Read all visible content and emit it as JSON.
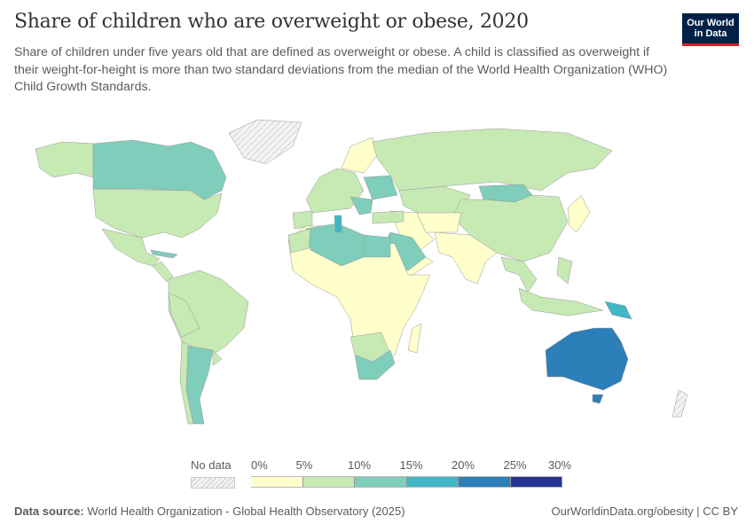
{
  "header": {
    "title": "Share of children who are overweight or obese, 2020",
    "subtitle": "Share of children under five years old that are defined as overweight or obese. A child is classified as overweight if their weight-for-height is more than two standard deviations from the median of the World Health Organization (WHO) Child Growth Standards.",
    "logo_text": "Our World in Data"
  },
  "legend": {
    "no_data_label": "No data",
    "bins": [
      {
        "label": "0%",
        "color": "#ffffcc"
      },
      {
        "label": "5%",
        "color": "#c7e9b4"
      },
      {
        "label": "10%",
        "color": "#7fcdbb"
      },
      {
        "label": "15%",
        "color": "#41b6c4"
      },
      {
        "label": "20%",
        "color": "#2c7fb8"
      },
      {
        "label": "25%",
        "color": "#253494"
      }
    ],
    "end_label": "30%"
  },
  "footer": {
    "source_prefix": "Data source:",
    "source": "World Health Organization - Global Health Observatory (2025)",
    "url": "OurWorldinData.org/obesity | CC BY"
  }
}
